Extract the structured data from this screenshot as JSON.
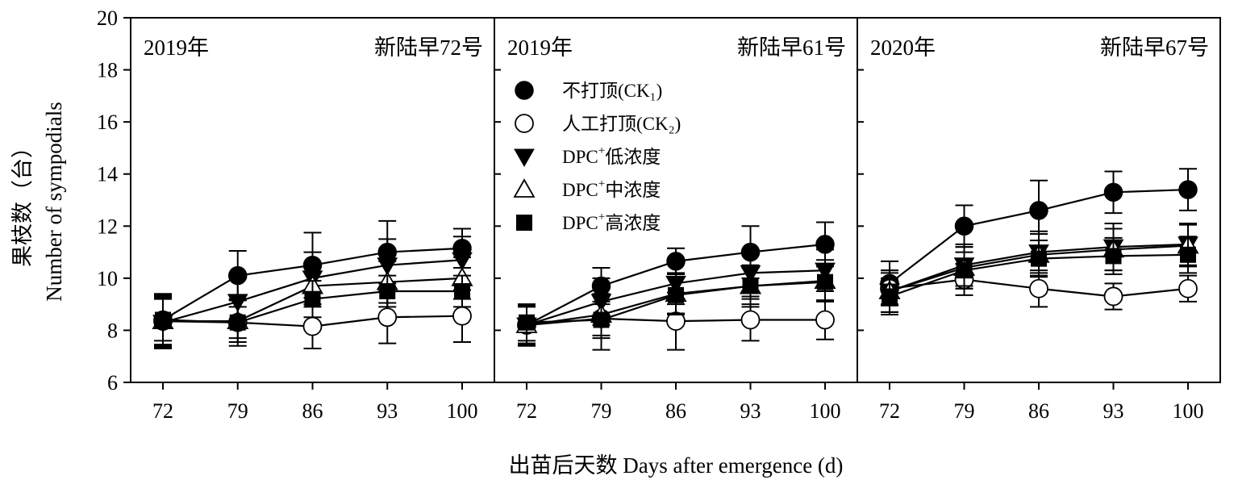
{
  "chart_data": {
    "type": "line",
    "xlabel": "出苗后天数 Days after emergence (d)",
    "ylabel_cn": "果枝数（台）",
    "ylabel_en": "Number of sympodials",
    "ylim": [
      6,
      20
    ],
    "yticks": [
      "6",
      "8",
      "10",
      "12",
      "14",
      "16",
      "18",
      "20"
    ],
    "categories": [
      "72",
      "79",
      "86",
      "93",
      "100"
    ],
    "legend": [
      {
        "label": "不打顶(CK₁)",
        "marker": "filled-circle"
      },
      {
        "label": "人工打顶(CK₂)",
        "marker": "open-circle"
      },
      {
        "label_main": "DPC",
        "label_sup": "+",
        "label_rest": "低浓度",
        "marker": "filled-down-triangle"
      },
      {
        "label_main": "DPC",
        "label_sup": "+",
        "label_rest": "中浓度",
        "marker": "open-up-triangle"
      },
      {
        "label_main": "DPC",
        "label_sup": "+",
        "label_rest": "高浓度",
        "marker": "filled-square"
      }
    ],
    "panels": [
      {
        "year": "2019年",
        "cultivar": "新陆早72号",
        "series": [
          {
            "values": [
              8.4,
              10.1,
              10.5,
              11.0,
              11.15
            ],
            "errors": [
              1.0,
              0.95,
              1.25,
              1.2,
              0.75
            ]
          },
          {
            "values": [
              8.35,
              8.3,
              8.15,
              8.5,
              8.55
            ],
            "errors": [
              1.0,
              0.9,
              0.85,
              1.0,
              1.0
            ]
          },
          {
            "values": [
              8.3,
              9.1,
              10.0,
              10.5,
              10.7
            ],
            "errors": [
              1.0,
              0.9,
              1.0,
              1.0,
              0.9
            ]
          },
          {
            "values": [
              8.35,
              8.35,
              9.7,
              9.85,
              10.0
            ],
            "errors": [
              0.9,
              0.8,
              0.8,
              0.8,
              0.8
            ]
          },
          {
            "values": [
              8.4,
              8.3,
              9.2,
              9.5,
              9.5
            ],
            "errors": [
              0.8,
              0.6,
              0.7,
              0.6,
              0.6
            ]
          }
        ]
      },
      {
        "year": "2019年",
        "cultivar": "新陆早61号",
        "series": [
          {
            "values": [
              8.2,
              9.7,
              10.65,
              11.0,
              11.3
            ],
            "errors": [
              0.8,
              0.7,
              0.5,
              1.0,
              0.85
            ]
          },
          {
            "values": [
              8.2,
              8.45,
              8.35,
              8.4,
              8.4
            ],
            "errors": [
              0.7,
              1.2,
              1.1,
              0.8,
              0.75
            ]
          },
          {
            "values": [
              8.2,
              9.1,
              9.8,
              10.2,
              10.3
            ],
            "errors": [
              0.75,
              0.9,
              0.8,
              0.9,
              0.8
            ]
          },
          {
            "values": [
              8.2,
              8.6,
              9.4,
              9.7,
              9.9
            ],
            "errors": [
              0.75,
              0.8,
              0.8,
              0.8,
              0.8
            ]
          },
          {
            "values": [
              8.3,
              8.4,
              9.35,
              9.7,
              9.85
            ],
            "errors": [
              0.7,
              0.7,
              0.7,
              0.7,
              0.7
            ]
          }
        ]
      },
      {
        "year": "2020年",
        "cultivar": "新陆早67号",
        "series": [
          {
            "values": [
              9.8,
              12.0,
              12.6,
              13.3,
              13.4
            ],
            "errors": [
              0.85,
              0.8,
              1.15,
              0.8,
              0.8
            ]
          },
          {
            "values": [
              9.6,
              9.95,
              9.6,
              9.3,
              9.6
            ],
            "errors": [
              0.6,
              0.6,
              0.7,
              0.5,
              0.5
            ]
          },
          {
            "values": [
              9.5,
              10.5,
              11.0,
              11.2,
              11.3
            ],
            "errors": [
              0.8,
              0.8,
              0.8,
              0.9,
              0.8
            ]
          },
          {
            "values": [
              9.5,
              10.4,
              10.9,
              11.1,
              11.25
            ],
            "errors": [
              0.8,
              0.8,
              0.8,
              0.8,
              0.8
            ]
          },
          {
            "values": [
              9.3,
              10.3,
              10.75,
              10.85,
              10.9
            ],
            "errors": [
              0.7,
              0.7,
              0.7,
              0.7,
              0.7
            ]
          }
        ]
      }
    ]
  }
}
